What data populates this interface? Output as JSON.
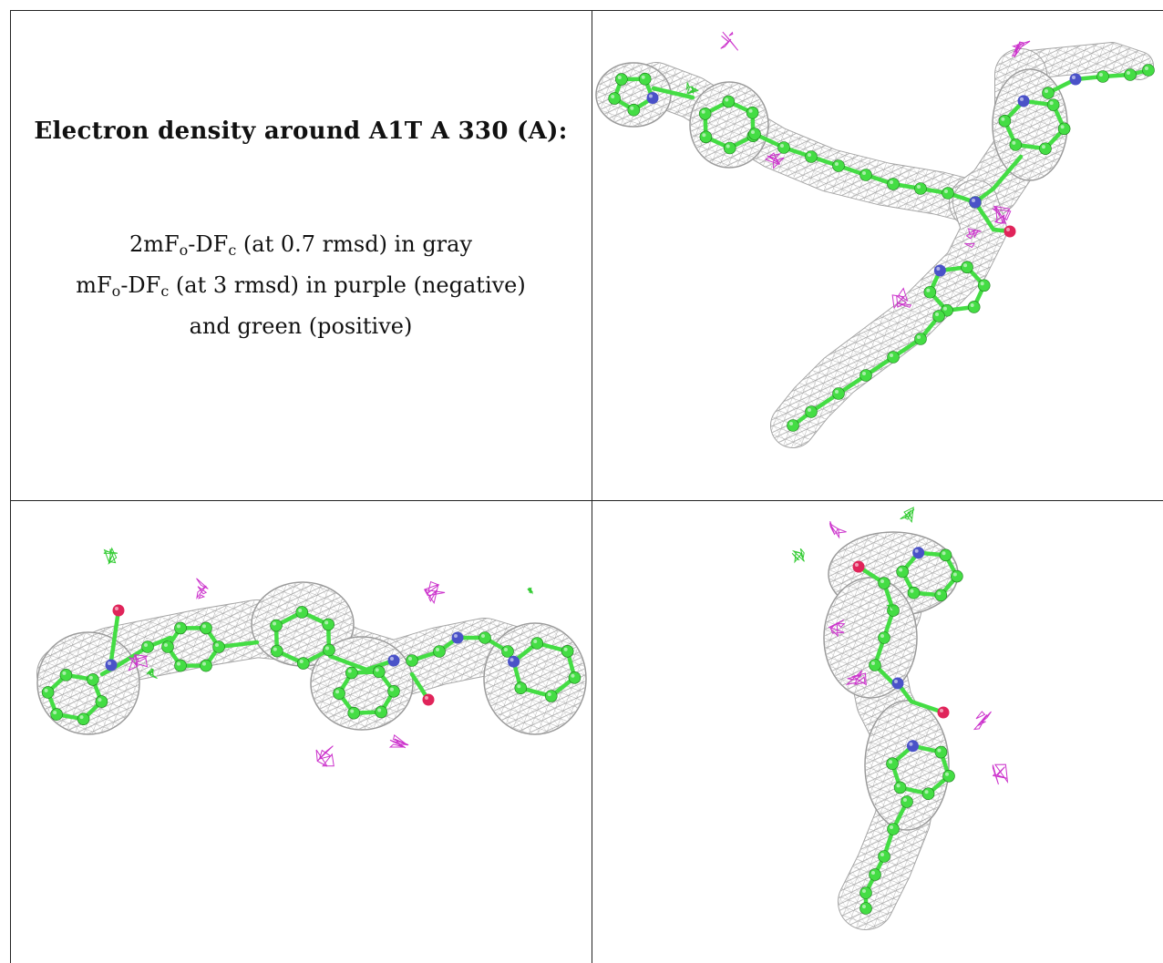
{
  "caption": {
    "title": "Electron density around A1T A 330 (A):",
    "map_2fofc": {
      "pre": "2mF",
      "sub1": "o",
      "mid": "-DF",
      "sub2": "c",
      "post": " (at 0.7 rmsd) in gray"
    },
    "map_fofc": {
      "pre": "mF",
      "sub1": "o",
      "mid": "-DF",
      "sub2": "c",
      "post": " (at 3 rmsd) in purple (negative)"
    },
    "map_fofc_cont": "and green (positive)"
  },
  "colors": {
    "mesh": "#9a9a9a",
    "carbon": "#44dd44",
    "nitrogen": "#4a52c8",
    "oxygen": "#e0245a",
    "negative_density": "#cc33cc",
    "positive_density": "#33cc33",
    "border": "#222222"
  },
  "panels": [
    {
      "id": "view-1",
      "description": "ligand view 1"
    },
    {
      "id": "view-2",
      "description": "ligand view 2"
    },
    {
      "id": "view-3",
      "description": "ligand view 3"
    }
  ]
}
